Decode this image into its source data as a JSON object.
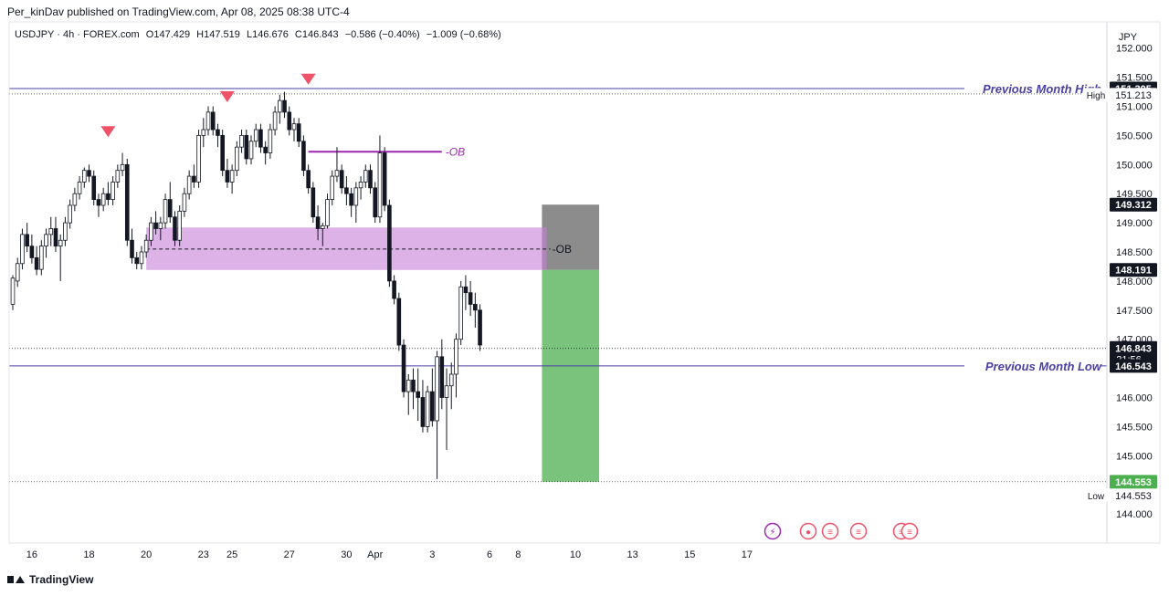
{
  "header": {
    "published": "Per_kinDav published on TradingView.com, Apr 08, 2025 08:38 UTC-4"
  },
  "legend": {
    "symbol": "USDJPY · 4h · FOREX.com",
    "open": "O147.429",
    "high": "H147.519",
    "low": "L146.676",
    "close": "C146.843",
    "change": "−0.586 (−0.40%)",
    "change2": "−1.009 (−0.68%)"
  },
  "footer": {
    "brand": "TradingView"
  },
  "chart_data": {
    "type": "candlestick",
    "currency": "JPY",
    "ylim": [
      143.5,
      152.45
    ],
    "y_ticks": [
      144.0,
      144.5,
      145.0,
      145.5,
      146.0,
      146.5,
      147.0,
      147.5,
      148.0,
      148.5,
      149.0,
      149.5,
      150.0,
      150.5,
      151.0,
      151.5,
      152.0
    ],
    "x_ticks": [
      {
        "label": "16",
        "bar": 4
      },
      {
        "label": "18",
        "bar": 16
      },
      {
        "label": "20",
        "bar": 28
      },
      {
        "label": "23",
        "bar": 40
      },
      {
        "label": "25",
        "bar": 46
      },
      {
        "label": "27",
        "bar": 58
      },
      {
        "label": "30",
        "bar": 70
      },
      {
        "label": "Apr",
        "bar": 76
      },
      {
        "label": "3",
        "bar": 88
      },
      {
        "label": "6",
        "bar": 100
      },
      {
        "label": "8",
        "bar": 106
      },
      {
        "label": "10",
        "bar": 118
      },
      {
        "label": "13",
        "bar": 130
      },
      {
        "label": "15",
        "bar": 142
      },
      {
        "label": "17",
        "bar": 154
      }
    ],
    "candles": [
      [
        147.6,
        148.1,
        147.5,
        148.05
      ],
      [
        148.0,
        148.4,
        147.9,
        148.3
      ],
      [
        148.3,
        148.9,
        148.2,
        148.8
      ],
      [
        148.8,
        149.0,
        148.5,
        148.6
      ],
      [
        148.6,
        148.8,
        148.3,
        148.4
      ],
      [
        148.4,
        148.6,
        148.1,
        148.2
      ],
      [
        148.2,
        148.7,
        148.1,
        148.6
      ],
      [
        148.6,
        148.9,
        148.4,
        148.8
      ],
      [
        148.8,
        149.1,
        148.6,
        148.9
      ],
      [
        148.9,
        149.1,
        148.5,
        148.6
      ],
      [
        148.6,
        148.8,
        148.0,
        148.7
      ],
      [
        148.7,
        149.1,
        148.6,
        149.0
      ],
      [
        149.0,
        149.4,
        148.9,
        149.3
      ],
      [
        149.3,
        149.6,
        149.2,
        149.5
      ],
      [
        149.5,
        149.8,
        149.4,
        149.7
      ],
      [
        149.7,
        149.95,
        149.6,
        149.9
      ],
      [
        149.9,
        150.0,
        149.7,
        149.8
      ],
      [
        149.8,
        149.9,
        149.3,
        149.4
      ],
      [
        149.4,
        149.5,
        149.1,
        149.3
      ],
      [
        149.3,
        149.6,
        149.2,
        149.5
      ],
      [
        149.5,
        149.7,
        149.3,
        149.4
      ],
      [
        149.4,
        149.8,
        149.3,
        149.7
      ],
      [
        149.7,
        150.0,
        149.6,
        149.9
      ],
      [
        149.9,
        150.2,
        149.8,
        150.0
      ],
      [
        150.0,
        150.1,
        148.6,
        148.7
      ],
      [
        148.7,
        148.9,
        148.3,
        148.4
      ],
      [
        148.4,
        148.5,
        148.2,
        148.3
      ],
      [
        148.3,
        148.6,
        148.2,
        148.5
      ],
      [
        148.5,
        148.8,
        148.4,
        148.7
      ],
      [
        148.7,
        149.1,
        148.6,
        149.0
      ],
      [
        149.0,
        149.2,
        148.8,
        148.9
      ],
      [
        148.9,
        149.1,
        148.7,
        149.0
      ],
      [
        149.0,
        149.5,
        148.9,
        149.4
      ],
      [
        149.4,
        149.7,
        149.0,
        149.1
      ],
      [
        149.1,
        149.2,
        148.6,
        148.7
      ],
      [
        148.7,
        149.3,
        148.6,
        149.2
      ],
      [
        149.2,
        149.6,
        149.1,
        149.5
      ],
      [
        149.5,
        149.9,
        149.4,
        149.8
      ],
      [
        149.8,
        150.0,
        149.6,
        149.7
      ],
      [
        149.7,
        150.6,
        149.6,
        150.5
      ],
      [
        150.5,
        150.8,
        150.3,
        150.6
      ],
      [
        150.6,
        151.0,
        150.5,
        150.9
      ],
      [
        150.9,
        151.0,
        150.5,
        150.6
      ],
      [
        150.6,
        150.7,
        150.3,
        150.5
      ],
      [
        150.5,
        150.6,
        149.8,
        149.9
      ],
      [
        149.9,
        150.1,
        149.6,
        149.7
      ],
      [
        149.7,
        150.0,
        149.5,
        149.9
      ],
      [
        149.9,
        150.4,
        149.8,
        150.3
      ],
      [
        150.3,
        150.6,
        150.2,
        150.5
      ],
      [
        150.5,
        150.6,
        150.0,
        150.1
      ],
      [
        150.1,
        150.5,
        150.0,
        150.4
      ],
      [
        150.4,
        150.7,
        150.3,
        150.6
      ],
      [
        150.6,
        150.7,
        150.2,
        150.3
      ],
      [
        150.3,
        150.4,
        150.0,
        150.2
      ],
      [
        150.2,
        150.7,
        150.1,
        150.6
      ],
      [
        150.6,
        151.0,
        150.5,
        150.9
      ],
      [
        150.9,
        151.2,
        150.7,
        151.1
      ],
      [
        151.1,
        151.25,
        150.8,
        150.9
      ],
      [
        150.9,
        151.0,
        150.5,
        150.6
      ],
      [
        150.6,
        150.8,
        150.4,
        150.7
      ],
      [
        150.7,
        150.8,
        150.3,
        150.4
      ],
      [
        150.4,
        150.5,
        149.8,
        149.9
      ],
      [
        149.9,
        150.0,
        149.5,
        149.6
      ],
      [
        149.6,
        149.7,
        149.0,
        149.1
      ],
      [
        149.1,
        149.3,
        148.7,
        148.9
      ],
      [
        148.9,
        149.0,
        148.6,
        148.95
      ],
      [
        148.95,
        149.5,
        148.9,
        149.4
      ],
      [
        149.4,
        149.9,
        149.3,
        149.8
      ],
      [
        149.8,
        150.3,
        149.7,
        149.9
      ],
      [
        149.9,
        150.0,
        149.5,
        149.6
      ],
      [
        149.6,
        149.8,
        149.3,
        149.5
      ],
      [
        149.5,
        149.6,
        149.1,
        149.3
      ],
      [
        149.3,
        149.7,
        149.0,
        149.6
      ],
      [
        149.6,
        149.8,
        149.4,
        149.7
      ],
      [
        149.7,
        150.0,
        149.6,
        149.9
      ],
      [
        149.9,
        150.0,
        149.5,
        149.6
      ],
      [
        149.6,
        149.7,
        149.0,
        149.1
      ],
      [
        149.1,
        150.5,
        149.0,
        150.2
      ],
      [
        150.2,
        150.3,
        149.2,
        149.3
      ],
      [
        149.3,
        149.4,
        147.9,
        148.0
      ],
      [
        148.0,
        148.1,
        147.6,
        147.7
      ],
      [
        147.7,
        147.8,
        146.8,
        146.9
      ],
      [
        146.9,
        147.0,
        146.0,
        146.1
      ],
      [
        146.1,
        146.4,
        145.7,
        146.3
      ],
      [
        146.3,
        146.5,
        145.8,
        146.1
      ],
      [
        146.1,
        146.5,
        145.6,
        146.0
      ],
      [
        146.0,
        146.3,
        145.4,
        145.5
      ],
      [
        145.5,
        146.2,
        145.4,
        146.1
      ],
      [
        146.1,
        146.5,
        145.5,
        145.6
      ],
      [
        145.6,
        146.8,
        144.6,
        146.7
      ],
      [
        146.7,
        147.0,
        145.8,
        146.0
      ],
      [
        146.0,
        146.5,
        145.1,
        146.2
      ],
      [
        146.2,
        146.6,
        145.8,
        146.4
      ],
      [
        146.4,
        147.1,
        146.0,
        147.0
      ],
      [
        147.0,
        148.0,
        146.9,
        147.9
      ],
      [
        147.9,
        148.1,
        147.5,
        147.8
      ],
      [
        147.8,
        148.0,
        147.4,
        147.6
      ],
      [
        147.6,
        147.8,
        147.2,
        147.5
      ],
      [
        147.5,
        147.6,
        146.8,
        146.9
      ]
    ],
    "price_labels": [
      {
        "label": "151.305",
        "value": 151.305
      },
      {
        "label": "151.213",
        "value": 151.213,
        "tag": "High"
      },
      {
        "label": "149.312",
        "value": 149.312
      },
      {
        "label": "148.191",
        "value": 148.191
      },
      {
        "label": "146.843",
        "value": 146.843,
        "sub": "21:56"
      },
      {
        "label": "146.543",
        "value": 146.543
      },
      {
        "label": "144.553",
        "value": 144.553,
        "kind": "target"
      },
      {
        "label": "144.553",
        "value": 144.553,
        "tag": "Low",
        "kind": "low"
      }
    ],
    "levels": [
      {
        "label": "Previous Month High",
        "value": 151.305
      },
      {
        "label": "Previous Month Low",
        "value": 146.543
      }
    ],
    "order_blocks": [
      {
        "label": "-OB",
        "top": 148.92,
        "bottom": 148.19,
        "mid": 148.55,
        "from_bar": 28,
        "to_bar": 112
      },
      {
        "label": "-OB",
        "value": 150.22,
        "from_bar": 62,
        "to_bar": 90
      }
    ],
    "position": {
      "entry": 148.191,
      "stop": 149.312,
      "target": 144.553,
      "from_bar": 111,
      "to_bar": 123
    },
    "swing_markers": [
      {
        "bar": 20,
        "value": 150.55
      },
      {
        "bar": 45,
        "value": 151.15
      },
      {
        "bar": 62,
        "value": 151.45
      }
    ],
    "colors": {
      "order_block": "#c77fd6",
      "ob_line": "#9c27b0",
      "level_line": "#4a3fa3",
      "marker": "#ef5369",
      "stop_zone": "#787878",
      "target_zone": "#4caf50",
      "target_label": "#4caf50",
      "price_label": "#131722"
    }
  }
}
